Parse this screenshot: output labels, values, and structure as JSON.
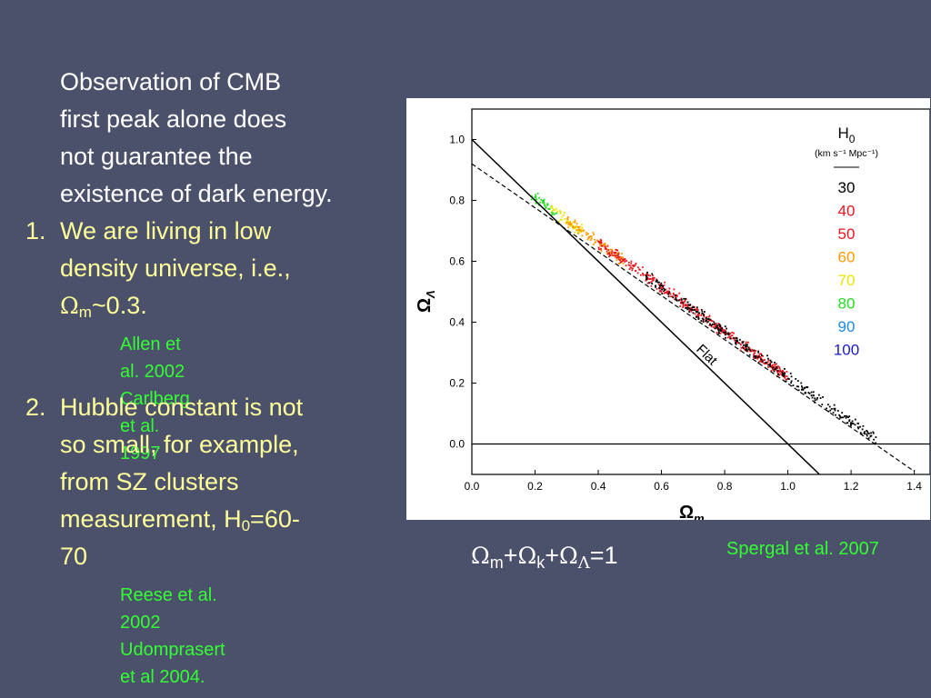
{
  "slide": {
    "intro_lines": [
      "Observation of CMB",
      "first peak alone does",
      "not guarantee the",
      "existence of dark energy."
    ],
    "item1": {
      "number": "1.",
      "lines": [
        "We are living in low",
        "density universe, i.e.,"
      ],
      "omega_symbol": "Ω",
      "omega_sub": "m",
      "omega_value": "~0.3."
    },
    "refs1": [
      "Allen et al. 2002",
      "Carlberg et al. 1997"
    ],
    "item2": {
      "number": "2.",
      "lines": [
        "Hubble constant is not",
        "so small, for example,",
        "from SZ clusters"
      ],
      "h_text": "measurement, H",
      "h_sub": "0",
      "h_value": "=60-",
      "last_line": "70"
    },
    "refs2": [
      "Reese et al. 2002",
      "Udomprasert et al 2004."
    ],
    "formula": {
      "omega1": "Ω",
      "sub1": "m",
      "plus1": "+",
      "omega2": "Ω",
      "sub2": "k",
      "plus2": "+",
      "omega3": "Ω",
      "sub3": "Λ",
      "equals": "=1"
    },
    "citation": "Spergal et al. 2007"
  },
  "chart_data": {
    "type": "scatter",
    "xlabel": "Ω",
    "xlabel_sub": "m",
    "ylabel": "Ω",
    "ylabel_sub": "Λ",
    "xlim": [
      0.0,
      1.45
    ],
    "ylim": [
      -0.1,
      1.1
    ],
    "xticks": [
      "0.0",
      "0.2",
      "0.4",
      "0.6",
      "0.8",
      "1.0",
      "1.2",
      "1.4"
    ],
    "xtick_values": [
      0.0,
      0.2,
      0.4,
      0.6,
      0.8,
      1.0,
      1.2,
      1.4
    ],
    "yticks": [
      "0.0",
      "0.2",
      "0.4",
      "0.6",
      "0.8",
      "1.0"
    ],
    "ytick_values": [
      0.0,
      0.2,
      0.4,
      0.6,
      0.8,
      1.0
    ],
    "lines": {
      "flat": {
        "label": "Flat",
        "x": [
          0.0,
          1.1
        ],
        "y": [
          1.0,
          -0.1
        ]
      },
      "dashed_fit": {
        "x": [
          0.0,
          1.4
        ],
        "y": [
          0.92,
          -0.09
        ]
      },
      "zero": {
        "y": 0.0
      }
    },
    "legend": {
      "title": "H",
      "title_sub": "0",
      "units": "(km s⁻¹ Mpc⁻¹)",
      "position": "top-right",
      "entries": [
        {
          "label": "30",
          "color": "#000000"
        },
        {
          "label": "40",
          "color": "#e8141c"
        },
        {
          "label": "50",
          "color": "#e8141c"
        },
        {
          "label": "60",
          "color": "#ff9900"
        },
        {
          "label": "70",
          "color": "#e6e600"
        },
        {
          "label": "80",
          "color": "#22dd22"
        },
        {
          "label": "90",
          "color": "#1e88e5"
        },
        {
          "label": "100",
          "color": "#1a1acc"
        }
      ]
    },
    "clusters": [
      {
        "H0": 80,
        "color": "#22dd22",
        "x": [
          0.18,
          0.27
        ],
        "y_center_at_x0": 0.955,
        "slope": -0.735,
        "count": 40
      },
      {
        "H0": 70,
        "color": "#e6e600",
        "x": [
          0.25,
          0.35
        ],
        "y_center_at_x0": 0.955,
        "slope": -0.735,
        "count": 50
      },
      {
        "H0": 60,
        "color": "#ff9900",
        "x": [
          0.3,
          0.48
        ],
        "y_center_at_x0": 0.955,
        "slope": -0.735,
        "count": 110
      },
      {
        "H0": 50,
        "color": "#e8141c",
        "x": [
          0.4,
          1.0
        ],
        "y_center_at_x0": 0.955,
        "slope": -0.735,
        "count": 420
      },
      {
        "H0": 30,
        "color": "#000000",
        "x": [
          0.55,
          1.28
        ],
        "y_center_at_x0": 0.955,
        "slope": -0.735,
        "count": 300
      }
    ]
  }
}
